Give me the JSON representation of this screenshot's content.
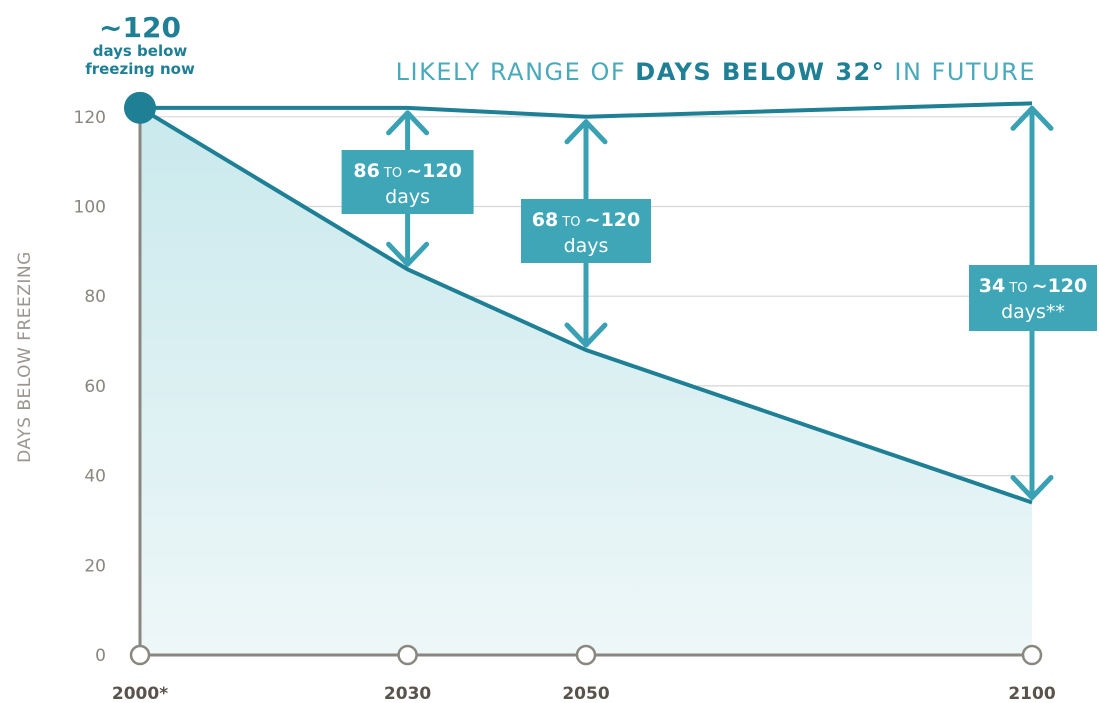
{
  "colors": {
    "line": "#1e7f95",
    "fill_top": "#c9e9ed",
    "fill_bottom": "#eef7f8",
    "box": "#3fa6b8",
    "arrow": "#3aa1b5",
    "axis": "#8a8680",
    "grid": "#d6d6d6",
    "title": "#4aaabb",
    "title_bold": "#1e7f95"
  },
  "title": {
    "prefix": "LIKELY RANGE OF ",
    "bold": "DAYS BELOW 32°",
    "suffix": " IN FUTURE"
  },
  "now_label": {
    "value": "~120",
    "line1": "days below",
    "line2": "freezing now"
  },
  "chart_data": {
    "type": "area",
    "ylabel": "DAYS BELOW FREEZING",
    "ylim": [
      0,
      120
    ],
    "yticks": [
      0,
      20,
      40,
      60,
      80,
      100,
      120
    ],
    "grid": true,
    "x_points": [
      {
        "label": "2000*",
        "year": 2000
      },
      {
        "label": "2030",
        "year": 2030
      },
      {
        "label": "2050",
        "year": 2050
      },
      {
        "label": "2100",
        "year": 2100
      }
    ],
    "series": [
      {
        "values_upper": [
          122,
          122,
          120,
          123
        ]
      },
      {
        "values_lower": [
          122,
          86,
          68,
          34
        ]
      }
    ],
    "ranges": [
      {
        "low": "86",
        "to": "TO",
        "high": "~120",
        "unit": "days"
      },
      {
        "low": "68",
        "to": "TO",
        "high": "~120",
        "unit": "days"
      },
      {
        "low": "34",
        "to": "TO",
        "high": "~120",
        "unit": "days**"
      }
    ]
  }
}
